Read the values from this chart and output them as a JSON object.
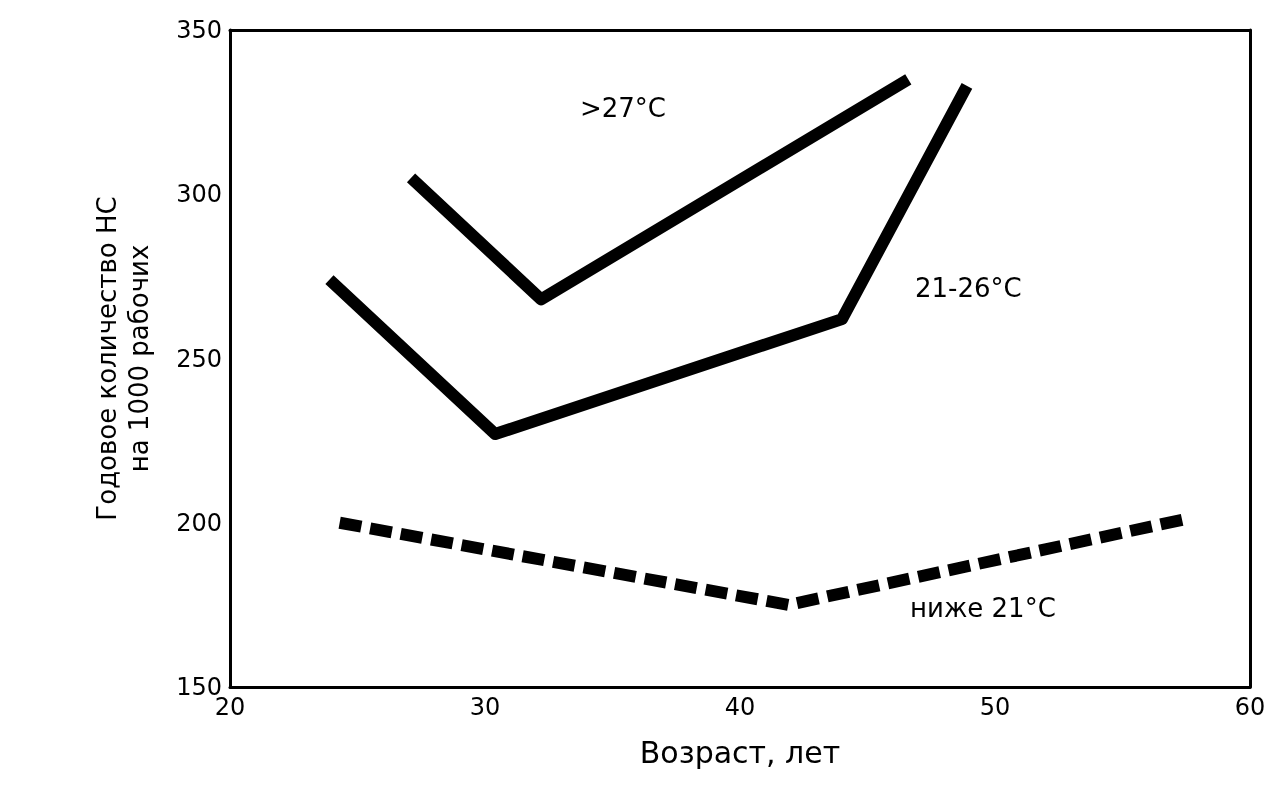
{
  "chart_data": {
    "type": "line",
    "xlabel": "Возраст, лет",
    "ylabel": "Годовое количество НС\nна 1000 рабочих",
    "series": [
      {
        "color": "#000000",
        "line_style": "solid",
        "x": [
          27.1,
          32.2,
          46.6
        ],
        "values": [
          305,
          268,
          335
        ]
      },
      {
        "color": "#000000",
        "line_style": "solid",
        "x": [
          23.9,
          30.4,
          44.0,
          48.9
        ],
        "values": [
          274,
          227,
          262,
          333
        ]
      },
      {
        "color": "#000000",
        "line_style": "dashed",
        "x": [
          24.3,
          41.9,
          57.4
        ],
        "values": [
          200,
          175,
          201
        ]
      }
    ],
    "xlim": [
      20,
      60
    ],
    "xticks": [
      20,
      30,
      40,
      50,
      60
    ],
    "ylim": [
      150,
      350
    ],
    "yticks": [
      150,
      200,
      250,
      300,
      350
    ],
    "grid": false,
    "marker": "none",
    "annotations": [
      ">27°C",
      "21-26°C",
      "ниже 21°C"
    ]
  }
}
